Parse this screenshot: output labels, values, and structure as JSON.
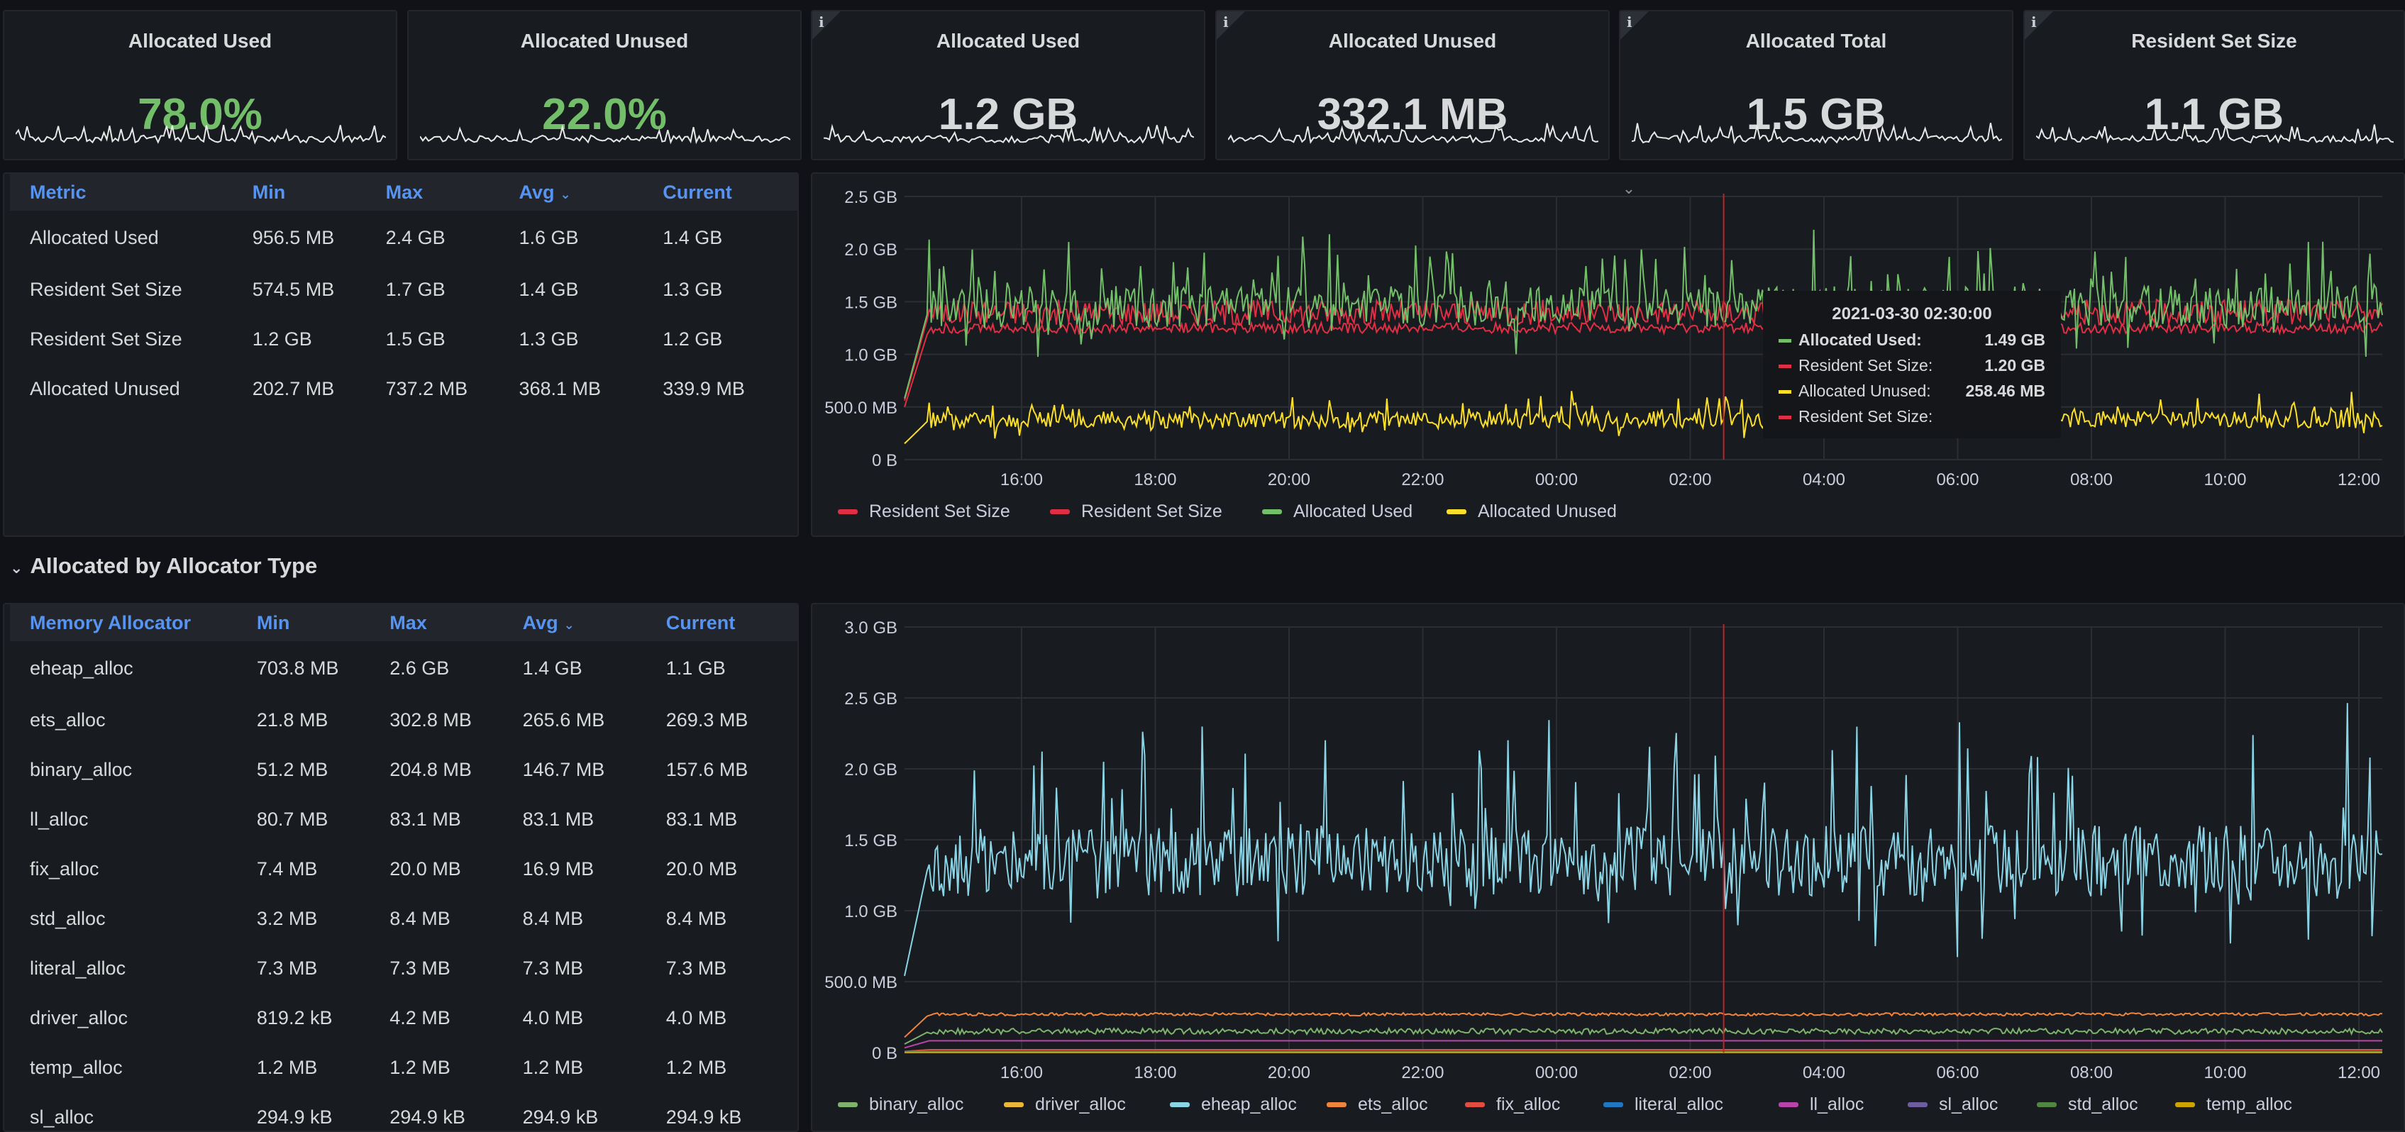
{
  "stats": [
    {
      "title": "Allocated Used",
      "value": "78.0%",
      "green": true,
      "info": false
    },
    {
      "title": "Allocated Unused",
      "value": "22.0%",
      "green": true,
      "info": false
    },
    {
      "title": "Allocated Used",
      "value": "1.2 GB",
      "green": false,
      "info": true
    },
    {
      "title": "Allocated Unused",
      "value": "332.1 MB",
      "green": false,
      "info": true
    },
    {
      "title": "Allocated Total",
      "value": "1.5 GB",
      "green": false,
      "info": true
    },
    {
      "title": "Resident Set Size",
      "value": "1.1 GB",
      "green": false,
      "info": true
    }
  ],
  "info_icon": "i",
  "memory_table": {
    "headers": [
      "Metric",
      "Min",
      "Max",
      "Avg",
      "Current"
    ],
    "sort_icon": "chevron-down-icon",
    "rows": [
      [
        "Allocated Used",
        "956.5 MB",
        "2.4 GB",
        "1.6 GB",
        "1.4 GB"
      ],
      [
        "Resident Set Size",
        "574.5 MB",
        "1.7 GB",
        "1.4 GB",
        "1.3 GB"
      ],
      [
        "Resident Set Size",
        "1.2 GB",
        "1.5 GB",
        "1.3 GB",
        "1.2 GB"
      ],
      [
        "Allocated Unused",
        "202.7 MB",
        "737.2 MB",
        "368.1 MB",
        "339.9 MB"
      ]
    ]
  },
  "row_title": "Allocated by Allocator Type",
  "allocator_table": {
    "headers": [
      "Memory Allocator",
      "Min",
      "Max",
      "Avg",
      "Current"
    ],
    "rows": [
      [
        "eheap_alloc",
        "703.8 MB",
        "2.6 GB",
        "1.4 GB",
        "1.1 GB"
      ],
      [
        "ets_alloc",
        "21.8 MB",
        "302.8 MB",
        "265.6 MB",
        "269.3 MB"
      ],
      [
        "binary_alloc",
        "51.2 MB",
        "204.8 MB",
        "146.7 MB",
        "157.6 MB"
      ],
      [
        "ll_alloc",
        "80.7 MB",
        "83.1 MB",
        "83.1 MB",
        "83.1 MB"
      ],
      [
        "fix_alloc",
        "7.4 MB",
        "20.0 MB",
        "16.9 MB",
        "20.0 MB"
      ],
      [
        "std_alloc",
        "3.2 MB",
        "8.4 MB",
        "8.4 MB",
        "8.4 MB"
      ],
      [
        "literal_alloc",
        "7.3 MB",
        "7.3 MB",
        "7.3 MB",
        "7.3 MB"
      ],
      [
        "driver_alloc",
        "819.2 kB",
        "4.2 MB",
        "4.0 MB",
        "4.0 MB"
      ],
      [
        "temp_alloc",
        "1.2 MB",
        "1.2 MB",
        "1.2 MB",
        "1.2 MB"
      ],
      [
        "sl_alloc",
        "294.9 kB",
        "294.9 kB",
        "294.9 kB",
        "294.9 kB"
      ]
    ]
  },
  "colors": {
    "green": "#73bf69",
    "red": "#e02f44",
    "yellow": "#fade2a",
    "blue": "#8ab8ff",
    "orange": "#ff9830",
    "cyan": "#8ad4e6"
  },
  "chart_data": [
    {
      "type": "line",
      "x_ticks": [
        "16:00",
        "18:00",
        "20:00",
        "22:00",
        "00:00",
        "02:00",
        "04:00",
        "06:00",
        "08:00",
        "10:00",
        "12:00"
      ],
      "y_ticks": [
        "0 B",
        "500.0 MB",
        "1.0 GB",
        "1.5 GB",
        "2.0 GB",
        "2.5 GB"
      ],
      "ylim_gb": [
        0,
        2.5
      ],
      "series": [
        {
          "name": "Resident Set Size",
          "color": "#e02f44",
          "base": 1.4,
          "amp": 0.12,
          "spike": 0.0
        },
        {
          "name": "Resident Set Size",
          "color": "#e02f44",
          "base": 1.25,
          "amp": 0.05,
          "spike": 0.0
        },
        {
          "name": "Allocated Used",
          "color": "#73bf69",
          "base": 1.45,
          "amp": 0.2,
          "spike": 0.55
        },
        {
          "name": "Allocated Unused",
          "color": "#fade2a",
          "base": 0.38,
          "amp": 0.08,
          "spike": 0.22
        }
      ],
      "cursor_time": "02:30",
      "tooltip": {
        "time": "2021-03-30 02:30:00",
        "rows": [
          {
            "label": "Allocated Used:",
            "value": "1.49 GB",
            "color": "#73bf69",
            "bold": true
          },
          {
            "label": "Resident Set Size:",
            "value": "1.20 GB",
            "color": "#e02f44",
            "bold": false
          },
          {
            "label": "Allocated Unused:",
            "value": "258.46 MB",
            "color": "#fade2a",
            "bold": false
          },
          {
            "label": "Resident Set Size:",
            "value": "",
            "color": "#e02f44",
            "bold": false
          }
        ]
      }
    },
    {
      "type": "line",
      "x_ticks": [
        "16:00",
        "18:00",
        "20:00",
        "22:00",
        "00:00",
        "02:00",
        "04:00",
        "06:00",
        "08:00",
        "10:00",
        "12:00"
      ],
      "y_ticks": [
        "0 B",
        "500.0 MB",
        "1.0 GB",
        "1.5 GB",
        "2.0 GB",
        "2.5 GB",
        "3.0 GB"
      ],
      "ylim_gb": [
        0,
        3.0
      ],
      "series": [
        {
          "name": "binary_alloc",
          "color": "#7eb26d",
          "base": 0.15,
          "amp": 0.02,
          "spike": 0.0
        },
        {
          "name": "driver_alloc",
          "color": "#eab839",
          "base": 0.004,
          "amp": 0.0,
          "spike": 0.0
        },
        {
          "name": "eheap_alloc",
          "color": "#8ad4e6",
          "base": 1.35,
          "amp": 0.25,
          "spike": 0.9
        },
        {
          "name": "ets_alloc",
          "color": "#ef843c",
          "base": 0.27,
          "amp": 0.01,
          "spike": 0.0
        },
        {
          "name": "fix_alloc",
          "color": "#e24d42",
          "base": 0.02,
          "amp": 0.0,
          "spike": 0.0
        },
        {
          "name": "literal_alloc",
          "color": "#1f78c1",
          "base": 0.007,
          "amp": 0.0,
          "spike": 0.0
        },
        {
          "name": "ll_alloc",
          "color": "#ba43a9",
          "base": 0.083,
          "amp": 0.0,
          "spike": 0.0
        },
        {
          "name": "sl_alloc",
          "color": "#705da0",
          "base": 0.0003,
          "amp": 0.0,
          "spike": 0.0
        },
        {
          "name": "std_alloc",
          "color": "#508642",
          "base": 0.008,
          "amp": 0.0,
          "spike": 0.0
        },
        {
          "name": "temp_alloc",
          "color": "#cca300",
          "base": 0.0012,
          "amp": 0.0,
          "spike": 0.0
        }
      ],
      "cursor_time": "02:30"
    }
  ]
}
